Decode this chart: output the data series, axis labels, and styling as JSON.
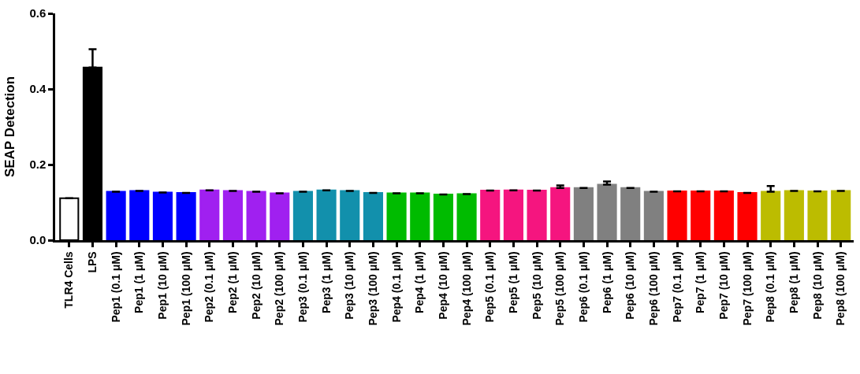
{
  "chart_data": {
    "type": "bar",
    "ylabel": "SEAP Detection",
    "categories": [
      "TLR4 Cells",
      "LPS",
      "Pep1 (0.1 μM)",
      "Pep1 (1 μM)",
      "Pep1 (10 μM)",
      "Pep1 (100 μM)",
      "Pep2 (0.1 μM)",
      "Pep2 (1 μM)",
      "Pep2 (10 μM)",
      "Pep2 (100 μM)",
      "Pep3 (0.1 μM)",
      "Pep3 (1 μM)",
      "Pep3 (10 μM)",
      "Pep3 (100 μM)",
      "Pep4 (0.1 μM)",
      "Pep4 (1 μM)",
      "Pep4 (10 μM)",
      "Pep4 (100 μM)",
      "Pep5 (0.1 μM)",
      "Pep5 (1 μM)",
      "Pep5 (10 μM)",
      "Pep5 (100 μM)",
      "Pep6 (0.1 μM)",
      "Pep6 (1 μM)",
      "Pep6 (10 μM)",
      "Pep6 (100 μM)",
      "Pep7 (0.1 μM)",
      "Pep7 (1 μM)",
      "Pep7 (10 μM)",
      "Pep7 (100 μM)",
      "Pep8 (0.1 μM)",
      "Pep8 (1 μM)",
      "Pep8 (10 μM)",
      "Pep8 (100 μM)"
    ],
    "values": [
      0.111,
      0.457,
      0.128,
      0.13,
      0.126,
      0.125,
      0.132,
      0.13,
      0.128,
      0.124,
      0.128,
      0.132,
      0.13,
      0.125,
      0.124,
      0.124,
      0.121,
      0.122,
      0.131,
      0.132,
      0.131,
      0.138,
      0.138,
      0.147,
      0.138,
      0.128,
      0.129,
      0.129,
      0.129,
      0.125,
      0.128,
      0.13,
      0.129,
      0.13
    ],
    "errors": [
      null,
      0.048,
      null,
      null,
      null,
      null,
      null,
      null,
      null,
      null,
      null,
      null,
      null,
      null,
      null,
      null,
      null,
      null,
      null,
      null,
      null,
      0.007,
      null,
      0.008,
      null,
      null,
      null,
      null,
      null,
      null,
      0.015,
      null,
      null,
      null
    ],
    "colors": [
      "#ffffff",
      "#000000",
      "#0000ff",
      "#0000ff",
      "#0000ff",
      "#0000ff",
      "#a020f0",
      "#a020f0",
      "#a020f0",
      "#a020f0",
      "#1290ac",
      "#1290ac",
      "#1290ac",
      "#1290ac",
      "#00bb00",
      "#00bb00",
      "#00bb00",
      "#00bb00",
      "#f5157f",
      "#f5157f",
      "#f5157f",
      "#f5157f",
      "#808080",
      "#808080",
      "#808080",
      "#808080",
      "#ff0000",
      "#ff0000",
      "#ff0000",
      "#ff0000",
      "#bcbc00",
      "#bcbc00",
      "#bcbc00",
      "#bcbc00"
    ],
    "ylim": [
      0,
      0.6
    ],
    "yticks": [
      {
        "value": 0,
        "label": "0.0"
      },
      {
        "value": 0.2,
        "label": "0.2"
      },
      {
        "value": 0.4,
        "label": "0.4"
      },
      {
        "value": 0.6,
        "label": "0.6"
      }
    ]
  }
}
